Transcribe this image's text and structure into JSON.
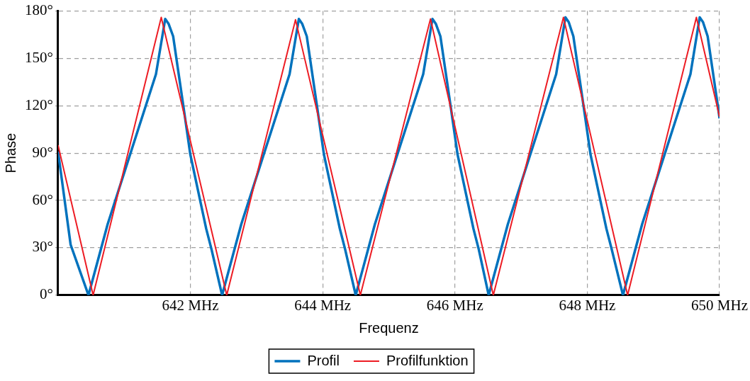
{
  "chart_data": {
    "type": "line",
    "xlabel": "Frequenz",
    "ylabel": "Phase",
    "xlim": [
      640,
      650
    ],
    "ylim": [
      0,
      180
    ],
    "xticks": [
      {
        "value": 642,
        "label": "642 MHz"
      },
      {
        "value": 644,
        "label": "644 MHz"
      },
      {
        "value": 646,
        "label": "646 MHz"
      },
      {
        "value": 648,
        "label": "648 MHz"
      },
      {
        "value": 650,
        "label": "650 MHz"
      }
    ],
    "yticks": [
      {
        "value": 0,
        "label": "0°"
      },
      {
        "value": 30,
        "label": "30°"
      },
      {
        "value": 60,
        "label": "60°"
      },
      {
        "value": 90,
        "label": "90°"
      },
      {
        "value": 120,
        "label": "120°"
      },
      {
        "value": 150,
        "label": "150°"
      },
      {
        "value": 180,
        "label": "180°"
      }
    ],
    "grid": true,
    "legend": "bottom",
    "marker": "none",
    "line_style": "solid",
    "series": [
      {
        "name": "Profil",
        "color": "#0072bd",
        "x": [
          640,
          640.19,
          640.46,
          640.75,
          641.48,
          641.62,
          641.67,
          641.74,
          641.89,
          642.0,
          642.24,
          642.32,
          642.48,
          642.77,
          643.5,
          643.64,
          643.69,
          643.76,
          643.91,
          644.02,
          644.26,
          644.34,
          644.5,
          644.79,
          645.52,
          645.66,
          645.71,
          645.78,
          645.93,
          646.04,
          646.28,
          646.36,
          646.51,
          646.8,
          647.53,
          647.67,
          647.72,
          647.79,
          647.94,
          648.05,
          648.29,
          648.37,
          648.54,
          648.83,
          649.56,
          649.7,
          649.75,
          649.82,
          649.97,
          650
        ],
        "values": [
          91,
          32,
          0,
          45,
          140,
          175,
          172,
          164,
          121,
          89,
          42,
          29,
          0,
          45,
          140,
          175,
          172,
          164,
          121,
          89,
          42,
          29,
          0,
          45,
          140,
          175,
          172,
          164,
          121,
          89,
          42,
          29,
          0,
          45,
          140,
          176,
          173,
          164,
          121,
          89,
          42,
          29,
          0,
          45,
          140,
          176,
          173,
          164,
          121,
          112
        ]
      },
      {
        "name": "Profilfunktion",
        "color": "#ed1c24",
        "x": [
          640,
          640.53,
          641.56,
          642.55,
          643.59,
          644.57,
          645.63,
          646.58,
          647.64,
          648.61,
          649.65,
          650
        ],
        "values": [
          95,
          0,
          176,
          0,
          174.5,
          0,
          175,
          0,
          176,
          0,
          176,
          113
        ]
      }
    ]
  }
}
